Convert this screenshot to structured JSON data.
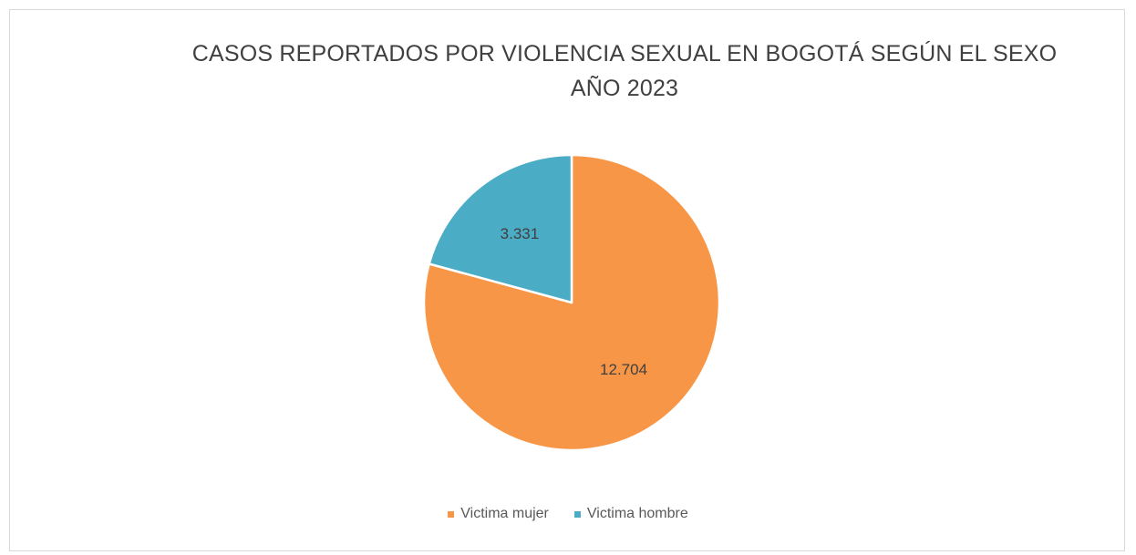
{
  "chart_data": {
    "type": "pie",
    "title": "CASOS REPORTADOS POR VIOLENCIA SEXUAL EN  BOGOTÁ SEGÚN EL SEXO",
    "subtitle": "AÑO 2023",
    "categories": [
      "Victima mujer",
      "Victima hombre"
    ],
    "values": [
      12704,
      3331
    ],
    "data_labels": [
      "12.704",
      "3.331"
    ],
    "colors": [
      "#F79646",
      "#4BACC6"
    ],
    "legend_position": "bottom"
  }
}
